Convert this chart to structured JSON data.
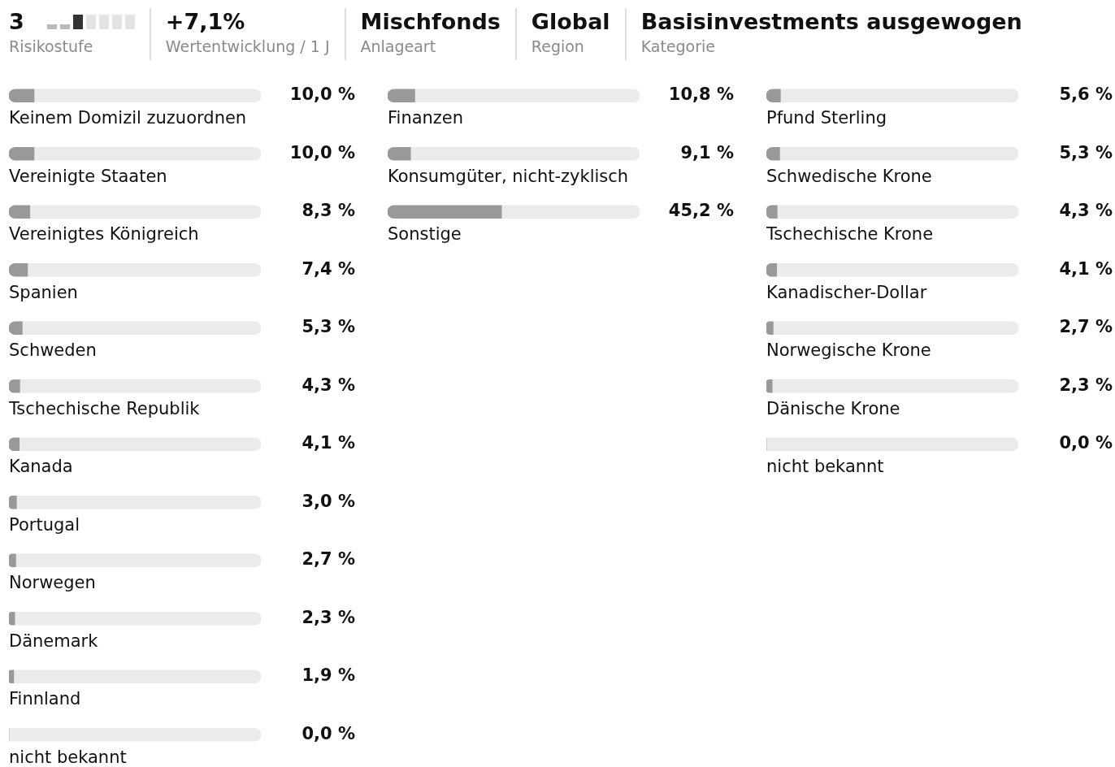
{
  "chart_data": [
    {
      "type": "other",
      "annotations": [
        "3",
        "Risikostufe",
        "+7,1%",
        "Wertentwicklung / 1 J",
        "Mischfonds",
        "Anlageart",
        "Global",
        "Region",
        "Basisinvestments ausgewogen",
        "Kategorie"
      ]
    },
    {
      "type": "bar",
      "orientation": "horizontal",
      "stacked": true,
      "categories": [
        "Keinem Domizil zuzuordnen",
        "Vereinigte Staaten",
        "Vereinigtes Königreich",
        "Spanien",
        "Schweden",
        "Tschechische Republik",
        "Kanada",
        "Portugal",
        "Norwegen",
        "Dänemark",
        "Finnland",
        "nicht bekannt"
      ],
      "series": [
        {
          "color": "#999999",
          "values": [
            10.0,
            10.0,
            8.3,
            7.4,
            5.3,
            4.3,
            4.1,
            3.0,
            2.7,
            2.3,
            1.9,
            0.0
          ],
          "value_labels": [
            "10,0 %",
            "10,0 %",
            "8,3 %",
            "7,4 %",
            "5,3 %",
            "4,3 %",
            "4,1 %",
            "3,0 %",
            "2,7 %",
            "2,3 %",
            "1,9 %",
            "0,0 %"
          ]
        },
        {
          "color": "#ebebeb",
          "values": [
            90.0,
            90.0,
            91.7,
            92.6,
            94.7,
            95.7,
            95.9,
            97.0,
            97.3,
            97.7,
            98.1,
            100.0
          ]
        }
      ],
      "xlim": [
        0,
        100
      ],
      "tick_labels": false
    },
    {
      "type": "bar",
      "orientation": "horizontal",
      "stacked": true,
      "categories": [
        "Finanzen",
        "Konsumgüter, nicht-zyklisch",
        "Sonstige"
      ],
      "series": [
        {
          "color": "#999999",
          "values": [
            10.8,
            9.1,
            45.2
          ],
          "value_labels": [
            "10,8 %",
            "9,1 %",
            "45,2 %"
          ]
        },
        {
          "color": "#ebebeb",
          "values": [
            89.2,
            90.9,
            54.8
          ]
        }
      ],
      "xlim": [
        0,
        100
      ],
      "tick_labels": false
    },
    {
      "type": "bar",
      "orientation": "horizontal",
      "stacked": true,
      "categories": [
        "Pfund Sterling",
        "Schwedische Krone",
        "Tschechische Krone",
        "Kanadischer-Dollar",
        "Norwegische Krone",
        "Dänische Krone",
        "nicht bekannt"
      ],
      "series": [
        {
          "color": "#999999",
          "values": [
            5.6,
            5.3,
            4.3,
            4.1,
            2.7,
            2.3,
            0.0
          ],
          "value_labels": [
            "5,6 %",
            "5,3 %",
            "4,3 %",
            "4,1 %",
            "2,7 %",
            "2,3 %",
            "0,0 %"
          ]
        },
        {
          "color": "#ebebeb",
          "values": [
            94.4,
            94.7,
            95.7,
            95.9,
            97.3,
            97.7,
            100.0
          ]
        }
      ],
      "xlim": [
        0,
        100
      ],
      "tick_labels": false
    }
  ]
}
